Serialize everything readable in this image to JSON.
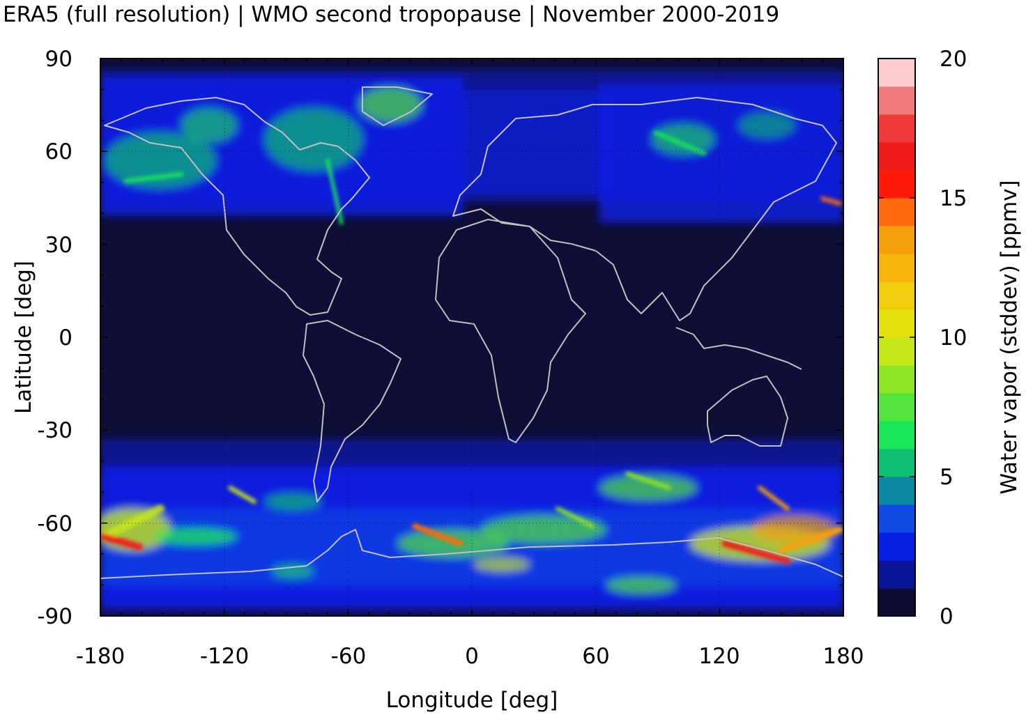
{
  "chart_data": {
    "type": "heatmap",
    "title": "ERA5 (full resolution) | WMO second tropopause | November 2000-2019",
    "xlabel": "Longitude [deg]",
    "ylabel": "Latitude [deg]",
    "colorbar_label": "Water vapor (stddev) [ppmv]",
    "xlim": [
      -180,
      180
    ],
    "ylim": [
      -90,
      90
    ],
    "x_ticks": [
      "-180",
      "-120",
      "-60",
      "0",
      "60",
      "120",
      "180"
    ],
    "y_ticks": [
      "90",
      "60",
      "30",
      "0",
      "-30",
      "-60",
      "-90"
    ],
    "colorbar_range": [
      0,
      20
    ],
    "colorbar_ticks": [
      "0",
      "5",
      "10",
      "15",
      "20"
    ],
    "colorbar_colors": [
      "#0d0d33",
      "#0a1499",
      "#0a1fe6",
      "#0f4be6",
      "#0d89a6",
      "#0fbf73",
      "#1ae65a",
      "#52e63d",
      "#8fe628",
      "#c7e61a",
      "#e6e00d",
      "#f0cc0a",
      "#f5b50a",
      "#f5a00a",
      "#ff6a0a",
      "#ff1a0a",
      "#f01a1a",
      "#f03a3a",
      "#f07a7a",
      "#ffcccc"
    ],
    "background_color": "#0e0e36",
    "coastline_color": "#c0c0c0",
    "grid": true
  }
}
